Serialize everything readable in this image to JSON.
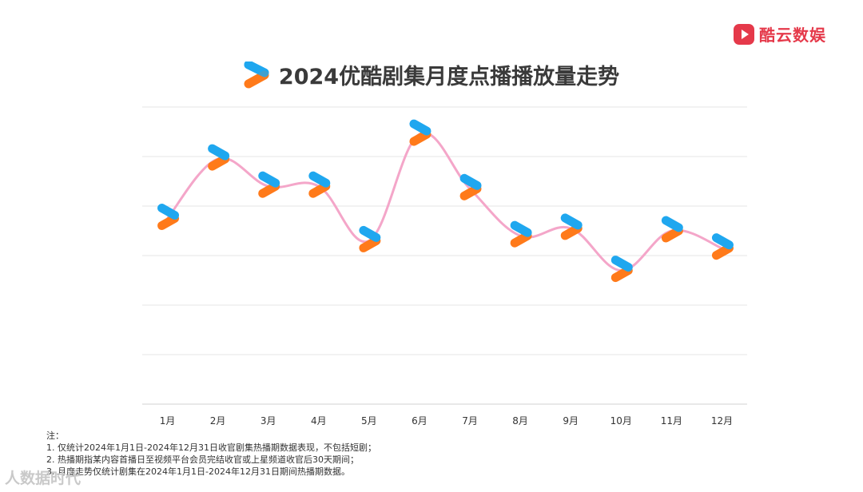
{
  "brand": {
    "name": "酷云数娱",
    "icon": "play-logo-icon"
  },
  "title": "2024优酷剧集月度点播播放量走势",
  "watermark": "人数据时代",
  "colors": {
    "line": "#f4a6c9",
    "grid": "#e6e6e6",
    "marker_top": "#1fa7ef",
    "marker_bottom": "#ff7a1a",
    "brand": "#e5394a"
  },
  "chart_data": {
    "type": "line",
    "title": "2024优酷剧集月度点播播放量走势",
    "xlabel": "",
    "ylabel": "",
    "categories": [
      "1月",
      "2月",
      "3月",
      "4月",
      "5月",
      "6月",
      "7月",
      "8月",
      "9月",
      "10月",
      "11月",
      "12月"
    ],
    "series": [
      {
        "values": [
          3.75,
          4.95,
          4.4,
          4.4,
          3.3,
          5.45,
          4.35,
          3.4,
          3.55,
          2.7,
          3.5,
          3.15
        ]
      }
    ],
    "ylim": [
      0,
      6
    ],
    "grid": true,
    "marker": "youku-logo-icon"
  },
  "notes": [
    "注：",
    "1. 仅统计2024年1月1日-2024年12月31日收官剧集热播期数据表现，不包括短剧；",
    "2. 热播期指某内容首播日至视频平台会员完结收官或上星频道收官后30天期间；",
    "3. 月度走势仅统计剧集在2024年1月1日-2024年12月31日期间热播期数据。"
  ]
}
